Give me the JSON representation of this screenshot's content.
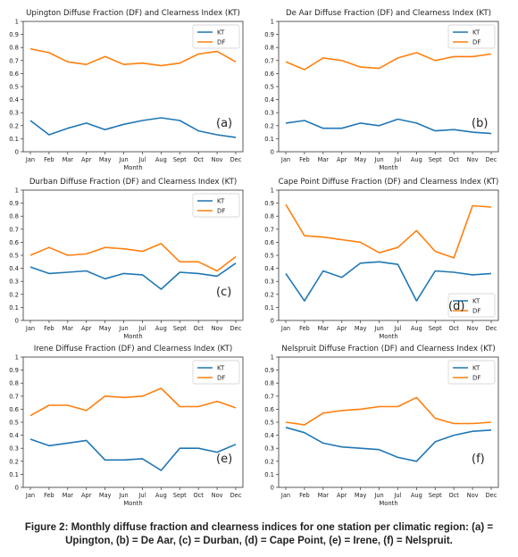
{
  "colors": {
    "kt": "#1f77b4",
    "df": "#ff7f0e",
    "axis": "#333333"
  },
  "chart_data": [
    {
      "type": "line",
      "title": "Upington Diffuse Fraction (DF) and Clearness Index (KT)",
      "panel_label": "(a)",
      "xlabel": "Month",
      "categories": [
        "Jan",
        "Feb",
        "Mar",
        "Apr",
        "May",
        "Jun",
        "Jul",
        "Aug",
        "Sept",
        "Oct",
        "Nov",
        "Dec"
      ],
      "ylim": [
        0,
        1.0
      ],
      "yticks": [
        "0",
        "0.1",
        "0.2",
        "0.3",
        "0.4",
        "0.5",
        "0.6",
        "0.7",
        "0.8",
        "0.9",
        "1"
      ],
      "legend_position": "top-right",
      "series": [
        {
          "name": "KT",
          "values": [
            0.24,
            0.13,
            0.18,
            0.22,
            0.17,
            0.21,
            0.24,
            0.26,
            0.24,
            0.16,
            0.13,
            0.11
          ]
        },
        {
          "name": "DF",
          "values": [
            0.79,
            0.76,
            0.69,
            0.67,
            0.73,
            0.67,
            0.68,
            0.66,
            0.68,
            0.75,
            0.77,
            0.69
          ]
        }
      ]
    },
    {
      "type": "line",
      "title": "De Aar Diffuse Fraction (DF) and Clearness Index (KT)",
      "panel_label": "(b)",
      "xlabel": "Month",
      "categories": [
        "Jan",
        "Feb",
        "Mar",
        "Apr",
        "May",
        "Jun",
        "Jul",
        "Aug",
        "Sept",
        "Oct",
        "Nov",
        "Dec"
      ],
      "ylim": [
        0,
        1.0
      ],
      "yticks": [
        "0",
        "0.1",
        "0.2",
        "0.3",
        "0.4",
        "0.5",
        "0.6",
        "0.7",
        "0.8",
        "0.9",
        "1"
      ],
      "legend_position": "top-right",
      "series": [
        {
          "name": "KT",
          "values": [
            0.22,
            0.24,
            0.18,
            0.18,
            0.22,
            0.2,
            0.25,
            0.22,
            0.16,
            0.17,
            0.15,
            0.14
          ]
        },
        {
          "name": "DF",
          "values": [
            0.69,
            0.63,
            0.72,
            0.7,
            0.65,
            0.64,
            0.72,
            0.76,
            0.7,
            0.73,
            0.73,
            0.75
          ]
        }
      ]
    },
    {
      "type": "line",
      "title": "Durban Diffuse Fraction (DF) and Clearness Index (KT)",
      "panel_label": "(c)",
      "xlabel": "Month",
      "categories": [
        "Jan",
        "Feb",
        "Mar",
        "Apr",
        "May",
        "Jun",
        "Jul",
        "Aug",
        "Sept",
        "Oct",
        "Nov",
        "Dec"
      ],
      "ylim": [
        0,
        1.0
      ],
      "yticks": [
        "0",
        "0.1",
        "0.2",
        "0.3",
        "0.4",
        "0.5",
        "0.6",
        "0.7",
        "0.8",
        "0.9",
        "1"
      ],
      "legend_position": "top-right",
      "series": [
        {
          "name": "KT",
          "values": [
            0.41,
            0.36,
            0.37,
            0.38,
            0.32,
            0.36,
            0.35,
            0.24,
            0.37,
            0.36,
            0.34,
            0.44
          ]
        },
        {
          "name": "DF",
          "values": [
            0.5,
            0.56,
            0.5,
            0.51,
            0.56,
            0.55,
            0.53,
            0.59,
            0.45,
            0.45,
            0.38,
            0.49
          ]
        }
      ]
    },
    {
      "type": "line",
      "title": "Cape Point Diffuse Fraction (DF) and Clearness Index (KT)",
      "panel_label": "(d)",
      "xlabel": "Month",
      "categories": [
        "Jan",
        "Feb",
        "Mar",
        "Apr",
        "May",
        "Jun",
        "Jul",
        "Aug",
        "Sept",
        "Oct",
        "Nov",
        "Dec"
      ],
      "ylim": [
        0,
        1.0
      ],
      "yticks": [
        "0",
        "0.1",
        "0.2",
        "0.3",
        "0.4",
        "0.5",
        "0.6",
        "0.7",
        "0.8",
        "0.9",
        "1"
      ],
      "legend_position": "bottom-right",
      "series": [
        {
          "name": "KT",
          "values": [
            0.36,
            0.15,
            0.38,
            0.33,
            0.44,
            0.45,
            0.43,
            0.15,
            0.38,
            0.37,
            0.35,
            0.36
          ]
        },
        {
          "name": "DF",
          "values": [
            0.89,
            0.65,
            0.64,
            0.62,
            0.6,
            0.52,
            0.56,
            0.69,
            0.53,
            0.48,
            0.88,
            0.87
          ]
        }
      ]
    },
    {
      "type": "line",
      "title": "Irene Diffuse Fraction (DF) and Clearness Index (KT)",
      "panel_label": "(e)",
      "xlabel": "Month",
      "categories": [
        "Jan",
        "Feb",
        "Mar",
        "Apr",
        "May",
        "Jun",
        "Jul",
        "Aug",
        "Sept",
        "Oct",
        "Nov",
        "Dec"
      ],
      "ylim": [
        0,
        1.0
      ],
      "yticks": [
        "0",
        "0.1",
        "0.2",
        "0.3",
        "0.4",
        "0.5",
        "0.6",
        "0.7",
        "0.8",
        "0.9",
        "1"
      ],
      "legend_position": "top-right",
      "series": [
        {
          "name": "KT",
          "values": [
            0.37,
            0.32,
            0.34,
            0.36,
            0.21,
            0.21,
            0.22,
            0.13,
            0.3,
            0.3,
            0.27,
            0.33
          ]
        },
        {
          "name": "DF",
          "values": [
            0.55,
            0.63,
            0.63,
            0.59,
            0.7,
            0.69,
            0.7,
            0.76,
            0.62,
            0.62,
            0.66,
            0.61
          ]
        }
      ]
    },
    {
      "type": "line",
      "title": "Nelspruit Diffuse Fraction (DF) and Clearness Index (KT)",
      "panel_label": "(f)",
      "xlabel": "Month",
      "categories": [
        "Jan",
        "Feb",
        "Mar",
        "Apr",
        "May",
        "Jun",
        "Jul",
        "Aug",
        "Sept",
        "Oct",
        "Nov",
        "Dec"
      ],
      "ylim": [
        0,
        1.0
      ],
      "yticks": [
        "0",
        "0.1",
        "0.2",
        "0.3",
        "0.4",
        "0.5",
        "0.6",
        "0.7",
        "0.8",
        "0.9",
        "1"
      ],
      "legend_position": "top-right",
      "series": [
        {
          "name": "KT",
          "values": [
            0.46,
            0.42,
            0.34,
            0.31,
            0.3,
            0.29,
            0.23,
            0.2,
            0.35,
            0.4,
            0.43,
            0.44
          ]
        },
        {
          "name": "DF",
          "values": [
            0.5,
            0.48,
            0.57,
            0.59,
            0.6,
            0.62,
            0.62,
            0.69,
            0.53,
            0.49,
            0.49,
            0.5
          ]
        }
      ]
    }
  ],
  "caption": "Figure 2: Monthly diffuse fraction and clearness indices for one station per climatic region: (a) = Upington, (b) = De Aar, (c) = Durban, (d) = Cape Point, (e) = Irene, (f) = Nelspruit."
}
